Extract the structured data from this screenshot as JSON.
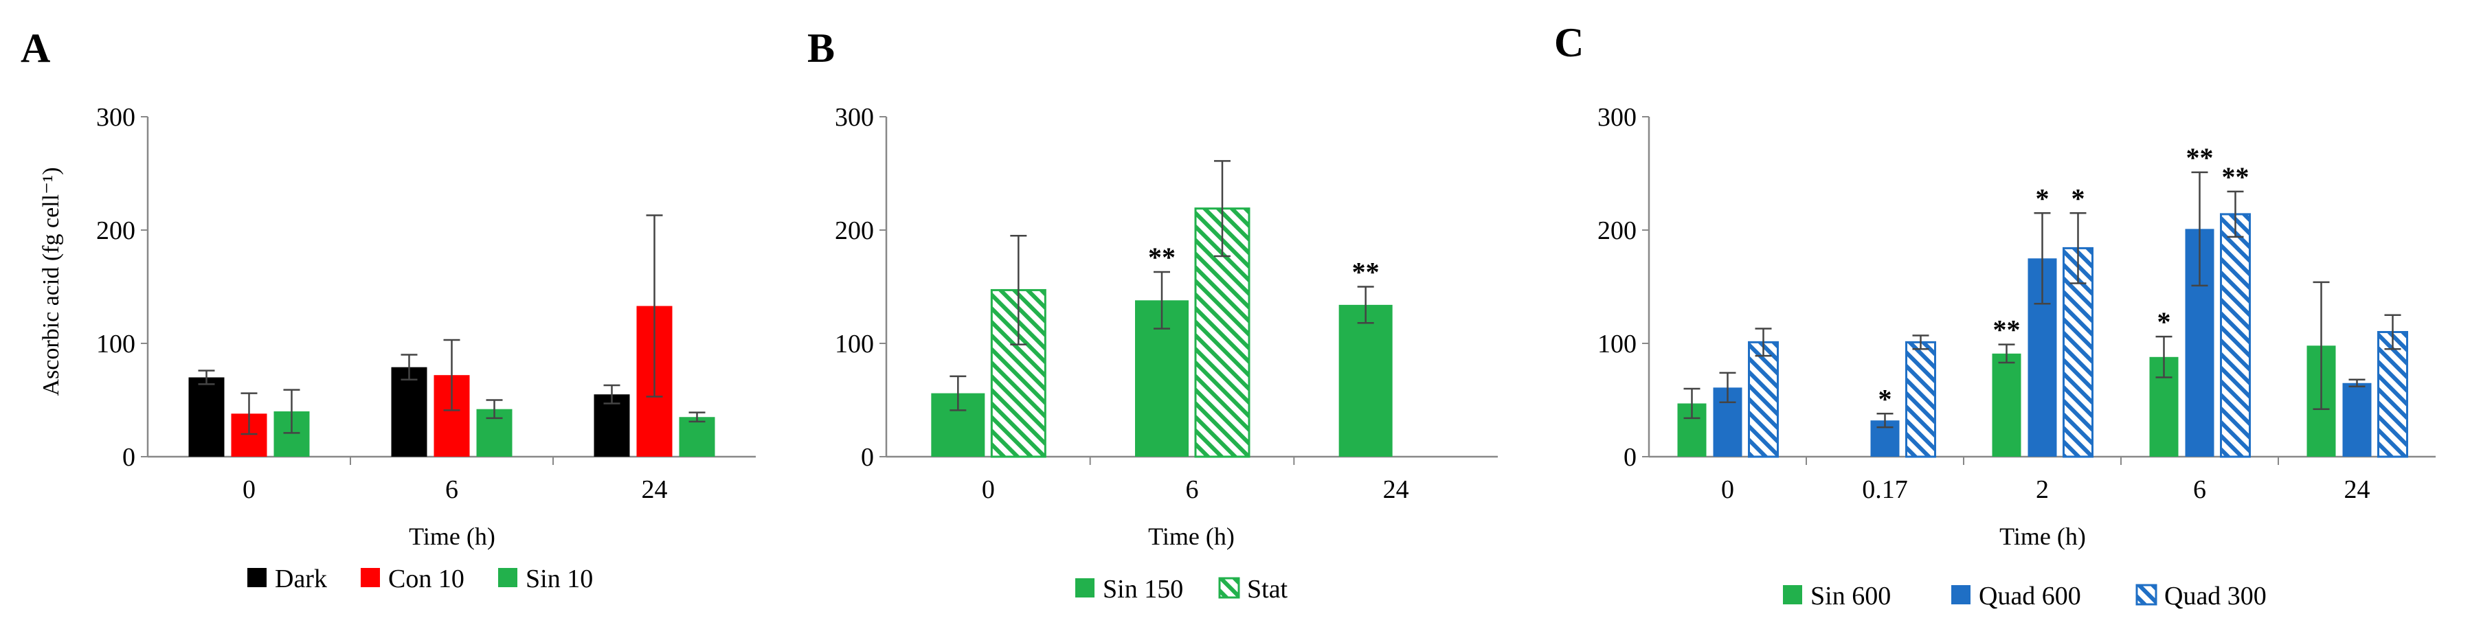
{
  "colors": {
    "dark": "#000000",
    "con": "#ff0000",
    "sin": "#22b14c",
    "quad": "#1f6fc5",
    "error_bar": "#444444",
    "axis": "#888888"
  },
  "chart_data": [
    {
      "panel_label": "A",
      "type": "bar",
      "ylabel": "Ascorbic acid (fg cell⁻¹)",
      "xlabel": "Time (h)",
      "ylim": [
        0,
        300
      ],
      "yticks": [
        0,
        100,
        200,
        300
      ],
      "categories": [
        "0",
        "6",
        "24"
      ],
      "legend_position": "bottom",
      "series": [
        {
          "name": "Dark",
          "style": "solid",
          "color": "#000000",
          "values": [
            70,
            79,
            55
          ],
          "errors": [
            6,
            11,
            8
          ],
          "significance": [
            "",
            "",
            ""
          ]
        },
        {
          "name": "Con 10",
          "style": "solid",
          "color": "#ff0000",
          "values": [
            38,
            72,
            133
          ],
          "errors": [
            18,
            31,
            80
          ],
          "significance": [
            "",
            "",
            ""
          ]
        },
        {
          "name": "Sin 10",
          "style": "solid",
          "color": "#22b14c",
          "values": [
            40,
            42,
            35
          ],
          "errors": [
            19,
            8,
            4
          ],
          "significance": [
            "",
            "",
            ""
          ]
        }
      ]
    },
    {
      "panel_label": "B",
      "type": "bar",
      "ylabel": "",
      "xlabel": "Time (h)",
      "ylim": [
        0,
        300
      ],
      "yticks": [
        0,
        100,
        200,
        300
      ],
      "categories": [
        "0",
        "6",
        "24"
      ],
      "legend_position": "bottom",
      "series": [
        {
          "name": "Sin 150",
          "style": "solid",
          "color": "#22b14c",
          "values": [
            56,
            138,
            134
          ],
          "errors": [
            15,
            25,
            16
          ],
          "significance": [
            "",
            "**",
            "**"
          ]
        },
        {
          "name": "Stat",
          "style": "hatched",
          "color": "#22b14c",
          "values": [
            147,
            219,
            null
          ],
          "errors": [
            48,
            42,
            null
          ],
          "significance": [
            "",
            "",
            ""
          ]
        }
      ]
    },
    {
      "panel_label": "C",
      "type": "bar",
      "ylabel": "",
      "xlabel": "Time (h)",
      "ylim": [
        0,
        300
      ],
      "yticks": [
        0,
        100,
        200,
        300
      ],
      "categories": [
        "0",
        "0.17",
        "2",
        "6",
        "24"
      ],
      "legend_position": "bottom",
      "series": [
        {
          "name": "Sin 600",
          "style": "solid",
          "color": "#22b14c",
          "values": [
            47,
            null,
            91,
            88,
            98
          ],
          "errors": [
            13,
            null,
            8,
            18,
            56
          ],
          "significance": [
            "",
            "",
            "**",
            "*",
            ""
          ]
        },
        {
          "name": "Quad 600",
          "style": "solid",
          "color": "#1f6fc5",
          "values": [
            61,
            32,
            175,
            201,
            65
          ],
          "errors": [
            13,
            6,
            40,
            50,
            3
          ],
          "significance": [
            "",
            "*",
            "*",
            "**",
            ""
          ]
        },
        {
          "name": "Quad 300",
          "style": "hatched",
          "color": "#1f6fc5",
          "values": [
            101,
            101,
            184,
            214,
            110
          ],
          "errors": [
            12,
            6,
            31,
            20,
            15
          ],
          "significance": [
            "",
            "",
            "*",
            "**",
            ""
          ]
        }
      ]
    }
  ]
}
